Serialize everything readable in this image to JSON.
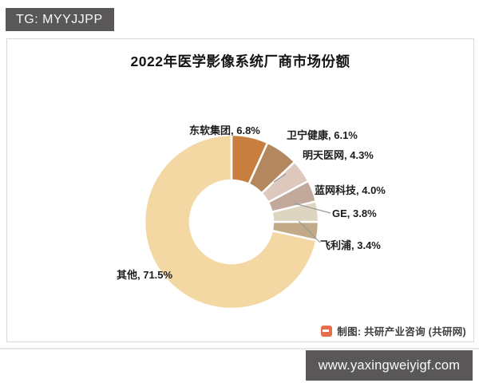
{
  "badge": {
    "text": "TG: MYYJJPP"
  },
  "title": "2022年医学影像系统厂商市场份额",
  "attribution": {
    "text": "制图: 共研产业咨询 (共研网)",
    "logo_color": "#e0562b"
  },
  "url_bar": {
    "text": "www.yaxingweiyigf.com",
    "background": "#595757"
  },
  "chart_data": {
    "type": "pie",
    "subtype": "donut",
    "title": "2022年医学影像系统厂商市场份额",
    "unit": "%",
    "start_angle_deg": 0,
    "direction": "clockwise",
    "legend_position": "none",
    "series": [
      {
        "name": "东软集团",
        "value": 6.8,
        "label": "东软集团, 6.8%",
        "color": "#c87e3e"
      },
      {
        "name": "卫宁健康",
        "value": 6.1,
        "label": "卫宁健康, 6.1%",
        "color": "#b4885e"
      },
      {
        "name": "明天医网",
        "value": 4.3,
        "label": "明天医网, 4.3%",
        "color": "#dcc8bc"
      },
      {
        "name": "蓝网科技",
        "value": 4.0,
        "label": "蓝网科技, 4.0%",
        "color": "#c3a99c"
      },
      {
        "name": "GE",
        "value": 3.8,
        "label": "GE, 3.8%",
        "color": "#ded5c0"
      },
      {
        "name": "飞利浦",
        "value": 3.4,
        "label": "飞利浦, 3.4%",
        "color": "#c2aa88"
      },
      {
        "name": "其他",
        "value": 71.5,
        "label": "其他, 71.5%",
        "color": "#f4d8a4"
      }
    ]
  }
}
